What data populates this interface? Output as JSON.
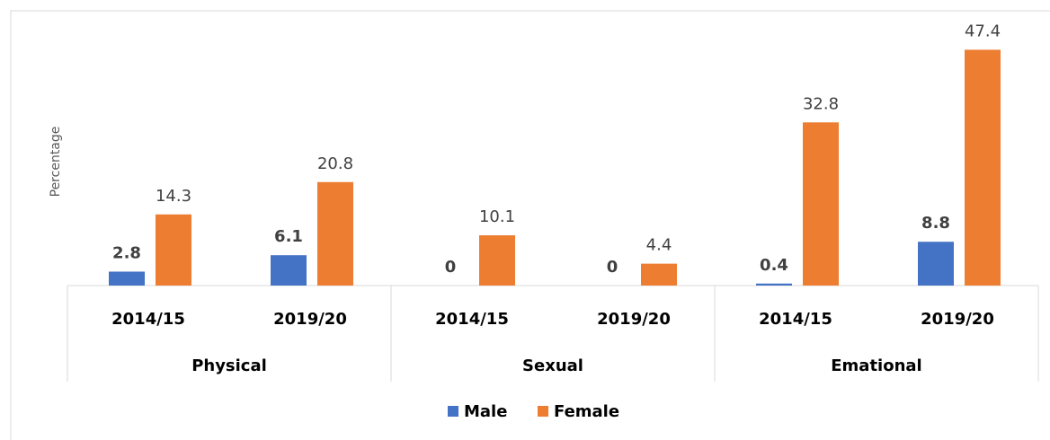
{
  "chart_data": {
    "type": "bar",
    "y_label": "Percentage",
    "groups": [
      {
        "name": "Physical",
        "categories": [
          "2014/15",
          "2019/20"
        ]
      },
      {
        "name": "Sexual",
        "categories": [
          "2014/15",
          "2019/20"
        ]
      },
      {
        "name": "Emational",
        "categories": [
          "2014/15",
          "2019/20"
        ]
      }
    ],
    "series": [
      {
        "name": "Male",
        "color": "#4472c4",
        "values": [
          2.8,
          6.1,
          0,
          0,
          0.4,
          8.8
        ]
      },
      {
        "name": "Female",
        "color": "#ed7d31",
        "values": [
          14.3,
          20.8,
          10.1,
          4.4,
          32.8,
          47.4
        ]
      }
    ],
    "ylim": [
      0,
      50
    ],
    "legend": "bottom"
  }
}
